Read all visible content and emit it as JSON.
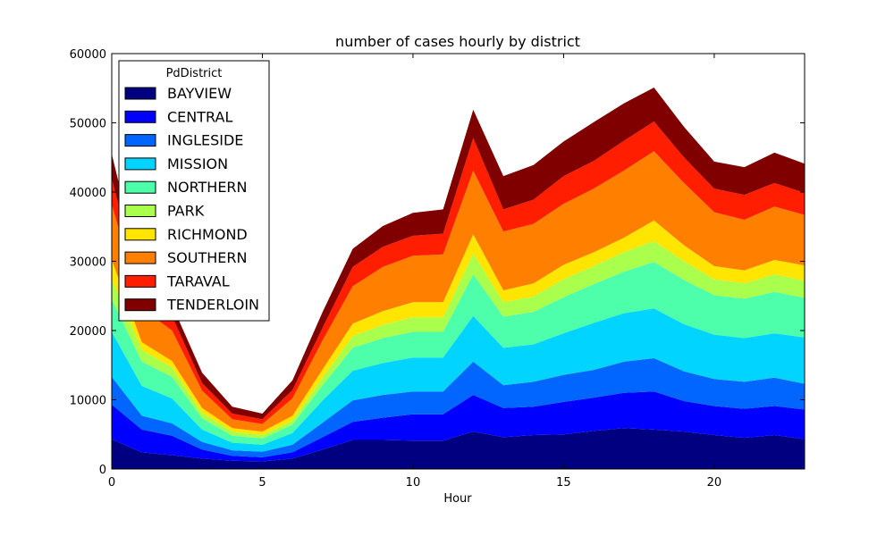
{
  "chart_data": {
    "type": "area",
    "stacked": true,
    "title": "number of cases hourly by district",
    "xlabel": "Hour",
    "ylabel": "",
    "xlim": [
      0,
      23
    ],
    "ylim": [
      0,
      60000
    ],
    "xticks": [
      0,
      5,
      10,
      15,
      20
    ],
    "yticks": [
      0,
      10000,
      20000,
      30000,
      40000,
      50000,
      60000
    ],
    "grid": false,
    "legend": {
      "title": "PdDistrict",
      "position": "top-left"
    },
    "x": [
      0,
      1,
      2,
      3,
      4,
      5,
      6,
      7,
      8,
      9,
      10,
      11,
      12,
      13,
      14,
      15,
      16,
      17,
      18,
      19,
      20,
      21,
      22,
      23
    ],
    "series": [
      {
        "name": "BAYVIEW",
        "color": "#000080",
        "values": [
          4300,
          2400,
          2000,
          1500,
          1200,
          1100,
          1500,
          2800,
          4200,
          4200,
          4100,
          4100,
          5400,
          4600,
          4900,
          5000,
          5500,
          5900,
          5700,
          5400,
          4900,
          4500,
          4900,
          4300
        ]
      },
      {
        "name": "CENTRAL",
        "color": "#0000ff",
        "values": [
          5000,
          3300,
          2800,
          1300,
          700,
          600,
          900,
          1800,
          2600,
          3200,
          3800,
          3800,
          5300,
          4200,
          4100,
          4700,
          4800,
          5100,
          5500,
          4400,
          4200,
          4200,
          4200,
          4300
        ]
      },
      {
        "name": "INGLESIDE",
        "color": "#0066ff",
        "values": [
          4000,
          2000,
          1800,
          1100,
          800,
          800,
          1100,
          2100,
          3100,
          3300,
          3300,
          3300,
          4800,
          3300,
          3600,
          3900,
          4000,
          4500,
          4800,
          4300,
          3900,
          3900,
          4100,
          3700
        ]
      },
      {
        "name": "MISSION",
        "color": "#00d4ff",
        "values": [
          6500,
          4300,
          3600,
          1800,
          1100,
          1000,
          1700,
          3200,
          4300,
          4600,
          4900,
          4900,
          6600,
          5400,
          5400,
          6000,
          6800,
          7000,
          7200,
          6800,
          6400,
          6300,
          6400,
          6700
        ]
      },
      {
        "name": "NORTHERN",
        "color": "#4dffaa",
        "values": [
          4700,
          3500,
          3100,
          1600,
          1000,
          900,
          1200,
          2200,
          3300,
          3600,
          3700,
          3700,
          6000,
          4500,
          4700,
          5200,
          5600,
          6000,
          6700,
          6400,
          5700,
          5700,
          6000,
          5700
        ]
      },
      {
        "name": "PARK",
        "color": "#aaff4d",
        "values": [
          2900,
          1700,
          1400,
          800,
          600,
          500,
          600,
          1100,
          1700,
          1900,
          2100,
          2100,
          3000,
          2100,
          2200,
          2600,
          2600,
          2800,
          3000,
          2700,
          2300,
          2200,
          2500,
          2500
        ]
      },
      {
        "name": "RICHMOND",
        "color": "#ffe500",
        "values": [
          2800,
          1100,
          900,
          700,
          500,
          500,
          700,
          1200,
          1800,
          2000,
          2200,
          2200,
          2800,
          1700,
          1900,
          2100,
          2000,
          2100,
          3000,
          2300,
          1900,
          1900,
          2100,
          2200
        ]
      },
      {
        "name": "SOUTHERN",
        "color": "#ff7f00",
        "values": [
          8000,
          4900,
          4400,
          2500,
          1300,
          1100,
          2500,
          4200,
          5400,
          6400,
          6700,
          6900,
          9200,
          8500,
          8600,
          8800,
          9200,
          9700,
          10000,
          9000,
          7800,
          7300,
          7700,
          7300
        ]
      },
      {
        "name": "TARAVAL",
        "color": "#ff1e00",
        "values": [
          3700,
          2200,
          2100,
          1100,
          800,
          700,
          1200,
          1800,
          2800,
          2900,
          2900,
          3000,
          4700,
          3200,
          3500,
          4000,
          4000,
          4300,
          4300,
          3700,
          3400,
          3600,
          3400,
          3200
        ]
      },
      {
        "name": "TENDERLOIN",
        "color": "#800000",
        "values": [
          3600,
          2200,
          1600,
          1500,
          1000,
          800,
          1400,
          2300,
          2600,
          3000,
          3300,
          3500,
          4100,
          4800,
          5000,
          5000,
          5600,
          5400,
          4900,
          4400,
          3900,
          4000,
          4400,
          4200
        ]
      }
    ]
  }
}
